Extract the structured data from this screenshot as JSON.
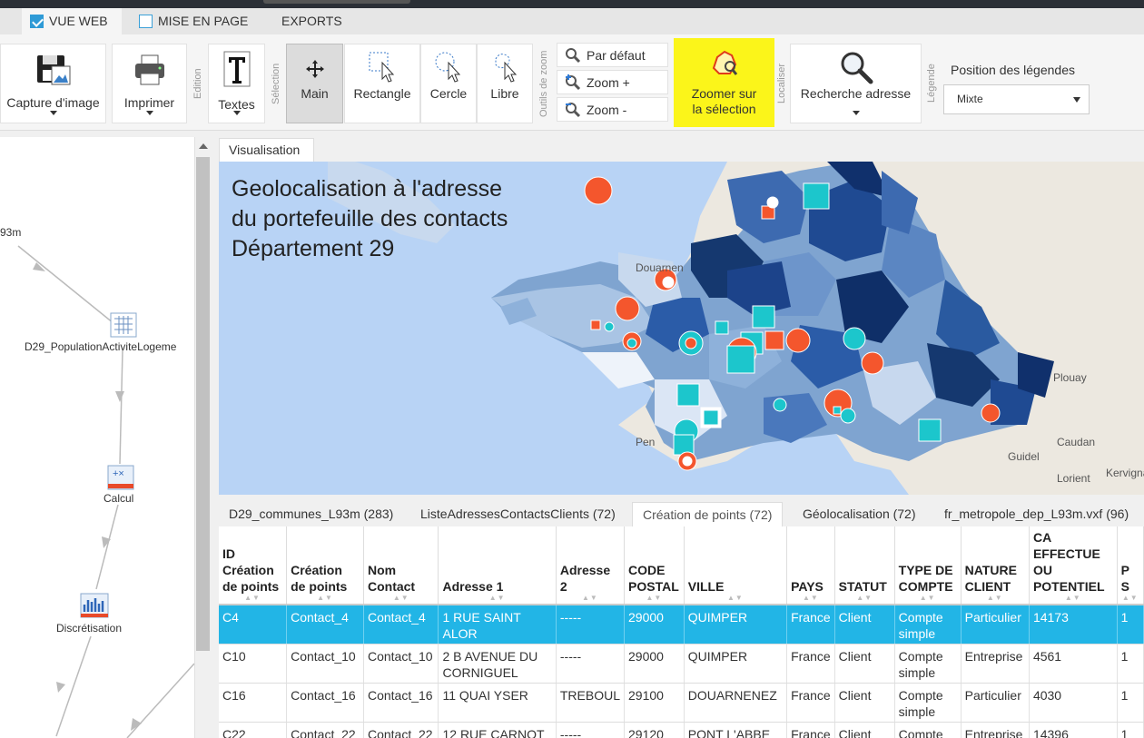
{
  "top_tabs": [
    {
      "label": "VUE WEB",
      "checked": true
    },
    {
      "label": "MISE EN PAGE",
      "checked": false
    },
    {
      "label": "EXPORTS"
    }
  ],
  "ribbon": {
    "capture_label": "Capture d'image",
    "print_label": "Imprimer",
    "group_edition": "Edition",
    "texts_label": "Textes",
    "group_selection": "Sélection",
    "main_label": "Main",
    "rectangle_label": "Rectangle",
    "circle_label": "Cercle",
    "free_label": "Libre",
    "group_zoom": "Outils de zoom",
    "zoom_default": "Par défaut",
    "zoom_in": "Zoom +",
    "zoom_out": "Zoom -",
    "zoom_selection_line1": "Zoomer sur",
    "zoom_selection_line2": "la sélection",
    "group_localiser": "Localiser",
    "address_search_label": "Recherche adresse",
    "group_legende": "Légende",
    "legend_position_label": "Position des légendes",
    "legend_position_value": "Mixte"
  },
  "workflow": {
    "edge_label": "93m",
    "node_population": "D29_PopulationActiviteLogeme",
    "node_calcul": "Calcul",
    "node_discretisation": "Discrétisation"
  },
  "visualisation_tab": "Visualisation",
  "map": {
    "title": "Geolocalisation à l'adresse\ndu portefeuille des contacts\nDépartement 29",
    "places": {
      "douarnenez": "Douarnen",
      "plouay": "Plouay",
      "caudan": "Caudan",
      "guidel": "Guidel",
      "lorient": "Lorient",
      "kervignac": "Kervignac",
      "pen": "Pen"
    }
  },
  "data_tabs": [
    {
      "label": "D29_communes_L93m (283)"
    },
    {
      "label": "ListeAdressesContactsClients (72)"
    },
    {
      "label": "Création de points (72)",
      "active": true
    },
    {
      "label": "Géolocalisation (72)"
    },
    {
      "label": "fr_metropole_dep_L93m.vxf (96)"
    }
  ],
  "table": {
    "headers": [
      "ID Création de points",
      "Création de points",
      "Nom Contact",
      "Adresse 1",
      "Adresse 2",
      "CODE POSTAL",
      "VILLE",
      "PAYS",
      "STATUT",
      "TYPE DE COMPTE",
      "NATURE CLIENT",
      "CA EFFECTUE OU POTENTIEL",
      "P S"
    ],
    "rows": [
      [
        "C4",
        "Contact_4",
        "Contact_4",
        "1 RUE SAINT ALOR",
        "-----",
        "29000",
        "QUIMPER",
        "France",
        "Client",
        "Compte simple",
        "Particulier",
        "14173",
        "1"
      ],
      [
        "C10",
        "Contact_10",
        "Contact_10",
        "2 B AVENUE DU CORNIGUEL",
        "-----",
        "29000",
        "QUIMPER",
        "France",
        "Client",
        "Compte simple",
        "Entreprise",
        "4561",
        "1"
      ],
      [
        "C16",
        "Contact_16",
        "Contact_16",
        "11 QUAI YSER",
        "TREBOUL",
        "29100",
        "DOUARNENEZ",
        "France",
        "Client",
        "Compte simple",
        "Particulier",
        "4030",
        "1"
      ],
      [
        "C22",
        "Contact_22",
        "Contact_22",
        "12 RUE CARNOT",
        "-----",
        "29120",
        "PONT L'ABBE",
        "France",
        "Client",
        "Compte simple",
        "Entreprise",
        "14396",
        "1"
      ]
    ],
    "selected_row": 0
  },
  "colors": {
    "accent": "#2e9ad6",
    "highlight": "#fbf51a",
    "selected_row": "#22b5e6",
    "point_orange": "#f4562d",
    "point_cyan": "#1cc6cc"
  }
}
